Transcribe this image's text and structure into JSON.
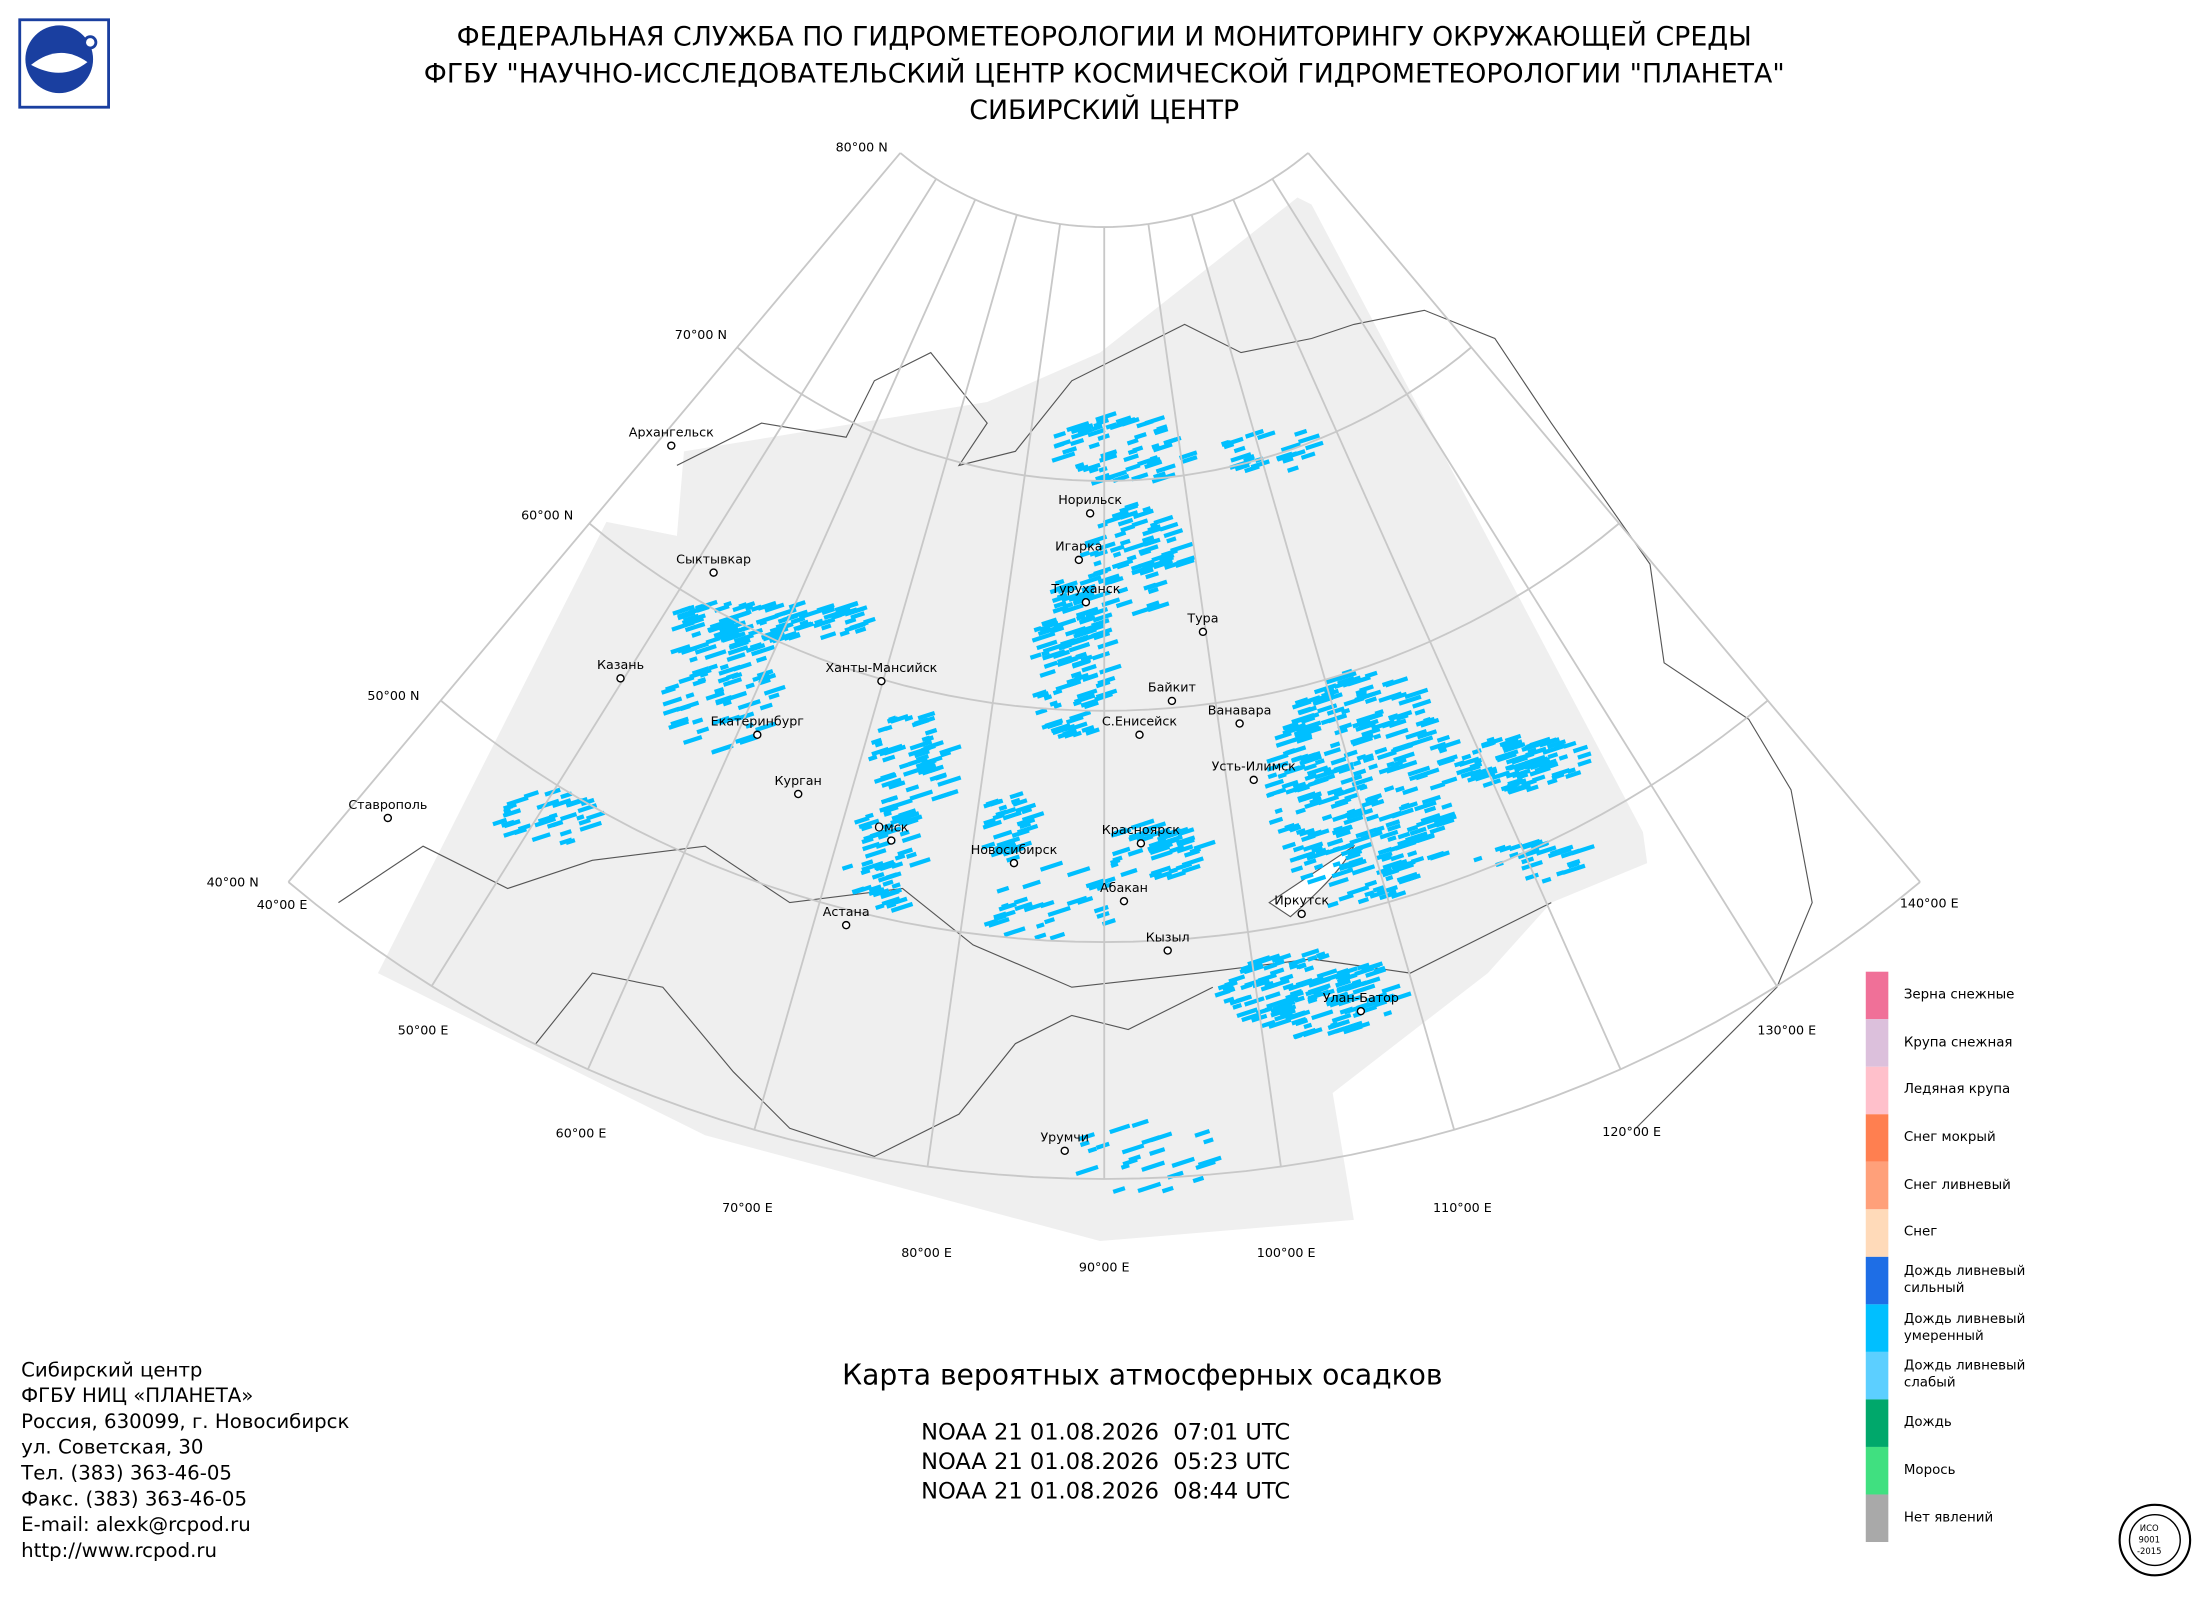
{
  "header": {
    "lines": [
      "ФЕДЕРАЛЬНАЯ СЛУЖБА ПО ГИДРОМЕТЕОРОЛОГИИ И МОНИТОРИНГУ ОКРУЖАЮЩЕЙ СРЕДЫ",
      "ФГБУ \"НАУЧНО-ИССЛЕДОВАТЕЛЬСКИЙ ЦЕНТР КОСМИЧЕСКОЙ ГИДРОМЕТЕОРОЛОГИИ \"ПЛАНЕТА\"",
      "СИБИРСКИЙ ЦЕНТР"
    ]
  },
  "map": {
    "lat_labels": [
      "80°00 N",
      "70°00 N",
      "60°00 N",
      "50°00 N",
      "40°00 N"
    ],
    "lon_labels": [
      "40°00 E",
      "50°00 E",
      "60°00 E",
      "70°00 E",
      "80°00 E",
      "90°00 E",
      "100°00 E",
      "110°00 E",
      "120°00 E",
      "130°00 E",
      "140°00 E"
    ],
    "cities": [
      "Архангельск",
      "Сыктывкар",
      "Казань",
      "Ханты-Мансийск",
      "Екатеринбург",
      "Курган",
      "Ставрополь",
      "Омск",
      "Астана",
      "Новосибирск",
      "Норильск",
      "Игарка",
      "Туруханск",
      "Тура",
      "Байкит",
      "Ванавара",
      "С.Енисейск",
      "Усть-Илимск",
      "Красноярск",
      "Абакан",
      "Иркутск",
      "Кызыл",
      "Улан-Батор",
      "Урумчи"
    ]
  },
  "legend": {
    "items": [
      {
        "label": "Зерна снежные",
        "color": "#f07098"
      },
      {
        "label": "Крупа снежная",
        "color": "#dcc0dc"
      },
      {
        "label": "Ледяная крупа",
        "color": "#ffc0cb"
      },
      {
        "label": "Снег мокрый",
        "color": "#ff7f50"
      },
      {
        "label": "Снег ливневый",
        "color": "#ffa07a"
      },
      {
        "label": "Снег",
        "color": "#ffdab9"
      },
      {
        "label": "Дождь ливневый сильный",
        "color": "#1e6ee6"
      },
      {
        "label": "Дождь ливневый умеренный",
        "color": "#00bfff"
      },
      {
        "label": "Дождь ливневый слабый",
        "color": "#5ccfff"
      },
      {
        "label": "Дождь",
        "color": "#00a86b"
      },
      {
        "label": "Морось",
        "color": "#40e080"
      },
      {
        "label": "Нет явлений",
        "color": "#a9a9a9"
      }
    ]
  },
  "title": "Карта вероятных атмосферных осадков",
  "passes": [
    "NOAA 21 01.08.2026  07:01 UTC",
    "NOAA 21 01.08.2026  05:23 UTC",
    "NOAA 21 01.08.2026  08:44 UTC"
  ],
  "contacts": [
    "Сибирский центр",
    "ФГБУ НИЦ «ПЛАНЕТА»",
    "Россия, 630099, г. Новосибирск",
    "ул. Советская, 30",
    "Тел. (383) 363-46-05",
    "Факс. (383) 363-46-05",
    "E-mail: alexk@rcpod.ru",
    "http://www.rcpod.ru"
  ],
  "iso_badge": [
    "ИСО",
    "9001",
    "-2015"
  ]
}
